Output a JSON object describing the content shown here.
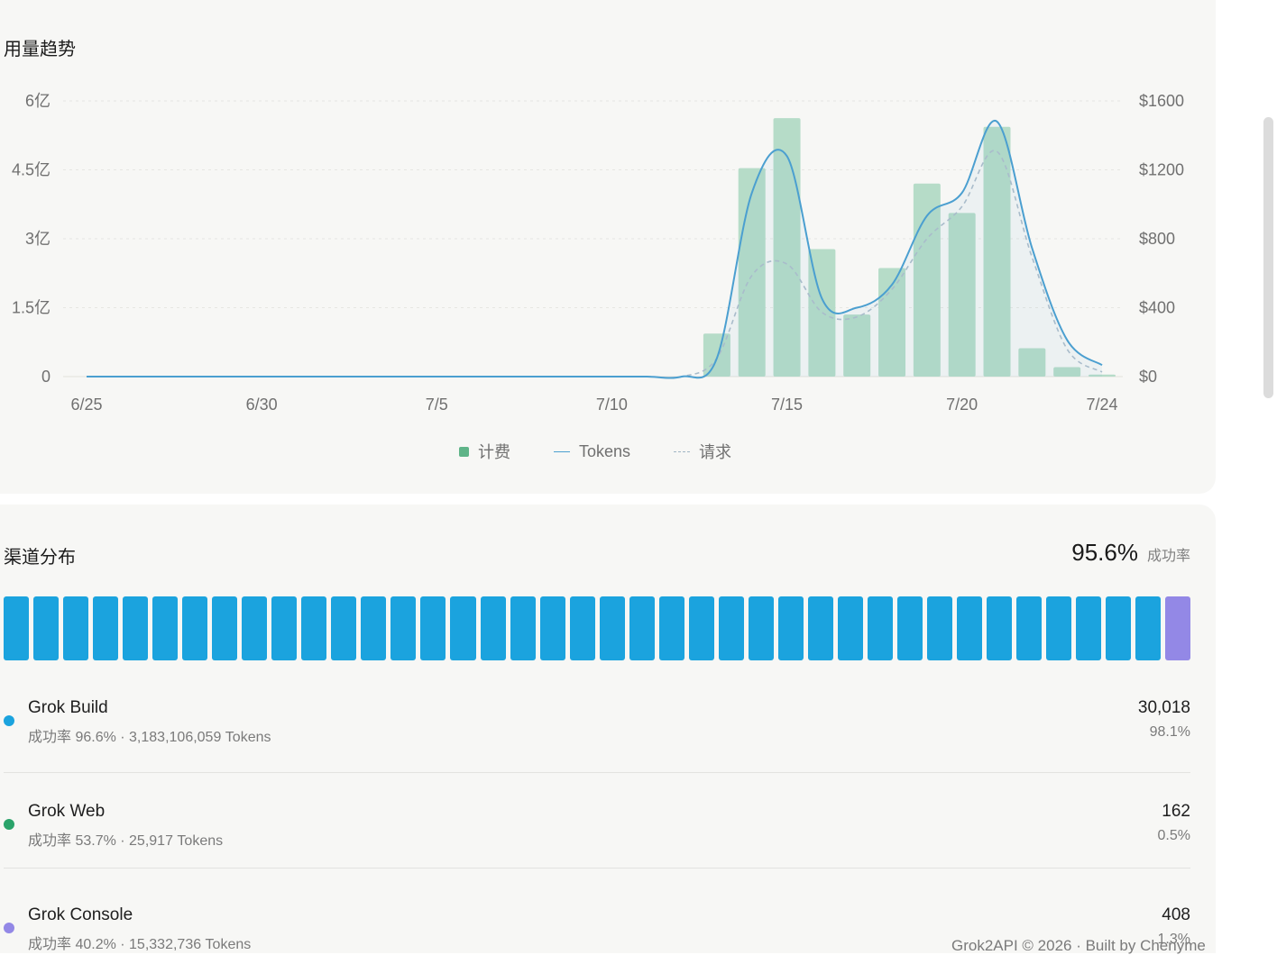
{
  "trend": {
    "title": "用量趋势"
  },
  "chart_data": {
    "type": "bar",
    "title": "",
    "dates": [
      "6/25",
      "6/26",
      "6/27",
      "6/28",
      "6/29",
      "6/30",
      "7/1",
      "7/2",
      "7/3",
      "7/4",
      "7/5",
      "7/6",
      "7/7",
      "7/8",
      "7/9",
      "7/10",
      "7/11",
      "7/12",
      "7/13",
      "7/14",
      "7/15",
      "7/16",
      "7/17",
      "7/18",
      "7/19",
      "7/20",
      "7/21",
      "7/22",
      "7/23",
      "7/24"
    ],
    "x_tick_labels": [
      "6/25",
      "6/30",
      "7/5",
      "7/10",
      "7/15",
      "7/20",
      "7/24"
    ],
    "y_left": {
      "ticks": [
        "0",
        "1.5亿",
        "3亿",
        "4.5亿",
        "6亿"
      ],
      "range": [
        0,
        600000000
      ]
    },
    "y_right": {
      "ticks": [
        "$0",
        "$400",
        "$800",
        "$1200",
        "$1600"
      ],
      "range": [
        0,
        1600
      ]
    },
    "grid": true,
    "legend_position": "bottom-center",
    "series": [
      {
        "name": "计费",
        "axis": "right",
        "kind": "bar",
        "color": "#b6dcc8",
        "values": [
          0,
          0,
          0,
          0,
          0,
          0,
          0,
          0,
          0,
          0,
          0,
          0,
          0,
          0,
          0,
          0,
          0,
          0,
          250,
          1210,
          1500,
          740,
          360,
          630,
          1120,
          950,
          1450,
          165,
          55,
          12
        ]
      },
      {
        "name": "Tokens",
        "axis": "left",
        "kind": "line",
        "color": "#4b9fd0",
        "values": [
          0,
          0,
          0,
          0,
          0,
          0,
          0,
          0,
          0,
          0,
          0,
          0,
          0,
          0,
          0,
          0,
          0,
          0,
          40000000,
          400000000,
          480000000,
          170000000,
          150000000,
          200000000,
          350000000,
          400000000,
          555000000,
          280000000,
          80000000,
          25000000
        ]
      },
      {
        "name": "请求",
        "axis": "left",
        "kind": "dashed-line",
        "color": "#a9bccb",
        "values": [
          0,
          0,
          0,
          0,
          0,
          0,
          0,
          0,
          0,
          0,
          0,
          0,
          0,
          0,
          0,
          0,
          0,
          0,
          40000000,
          220000000,
          245000000,
          140000000,
          130000000,
          190000000,
          300000000,
          370000000,
          490000000,
          260000000,
          60000000,
          10000000
        ]
      }
    ]
  },
  "legend": [
    {
      "label": "计费",
      "kind": "bar",
      "color": "#5fb488"
    },
    {
      "label": "Tokens",
      "kind": "line",
      "color": "#4b9fd0"
    },
    {
      "label": "请求",
      "kind": "dashed",
      "color": "#9fb5c4"
    }
  ],
  "channels": {
    "title": "渠道分布",
    "success_rate": "95.6%",
    "success_label": "成功率",
    "distribution_bar": {
      "segments": 40,
      "primary_segments": 39,
      "primary_color": "#1ba3de",
      "secondary_color": "#9388e6"
    },
    "items": [
      {
        "name": "Grok Build",
        "sub": "成功率 96.6% · 3,183,106,059 Tokens",
        "count": "30,018",
        "pct": "98.1%",
        "color": "#1ba3de"
      },
      {
        "name": "Grok Web",
        "sub": "成功率 53.7% · 25,917 Tokens",
        "count": "162",
        "pct": "0.5%",
        "color": "#2aa36a"
      },
      {
        "name": "Grok Console",
        "sub": "成功率 40.2% · 15,332,736 Tokens",
        "count": "408",
        "pct": "1.3%",
        "color": "#9388e6"
      }
    ]
  },
  "footer": {
    "text": "Grok2API  © 2026  ·  Built by  Chenyme"
  }
}
